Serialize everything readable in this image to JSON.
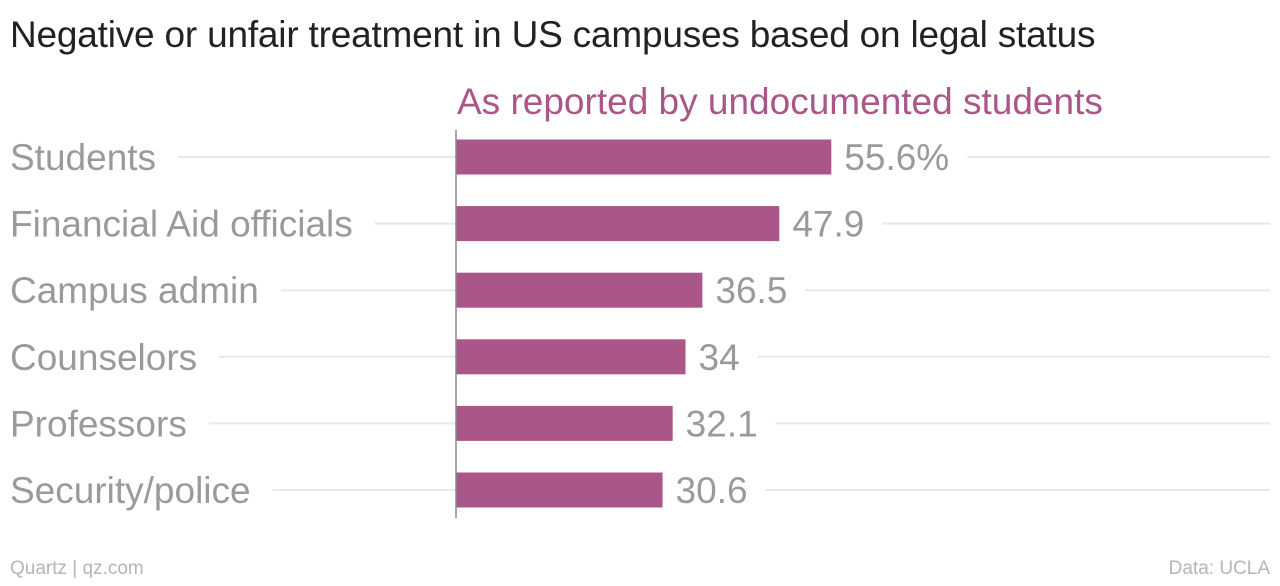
{
  "title": "Negative or unfair treatment in US campuses based on legal status",
  "footer": {
    "credit": "Quartz | qz.com",
    "source": "Data: UCLA"
  },
  "colors": {
    "bar": "#aa5688",
    "subtitle": "#aa5688",
    "category_label": "#9a9a9a",
    "value_label": "#9a9a9a",
    "gridline": "#e8e8e8",
    "axis": "#888888"
  },
  "chart_data": {
    "type": "bar",
    "orientation": "horizontal",
    "subtitle": "As reported by undocumented students",
    "categories": [
      "Students",
      "Financial Aid officials",
      "Campus admin",
      "Counselors",
      "Professors",
      "Security/police"
    ],
    "values": [
      55.6,
      47.9,
      36.5,
      34,
      32.1,
      30.6
    ],
    "value_labels": [
      "55.6%",
      "47.9",
      "36.5",
      "34",
      "32.1",
      "30.6"
    ],
    "unit": "%",
    "xlim": [
      0,
      100
    ],
    "grid": true,
    "legend": "none"
  }
}
